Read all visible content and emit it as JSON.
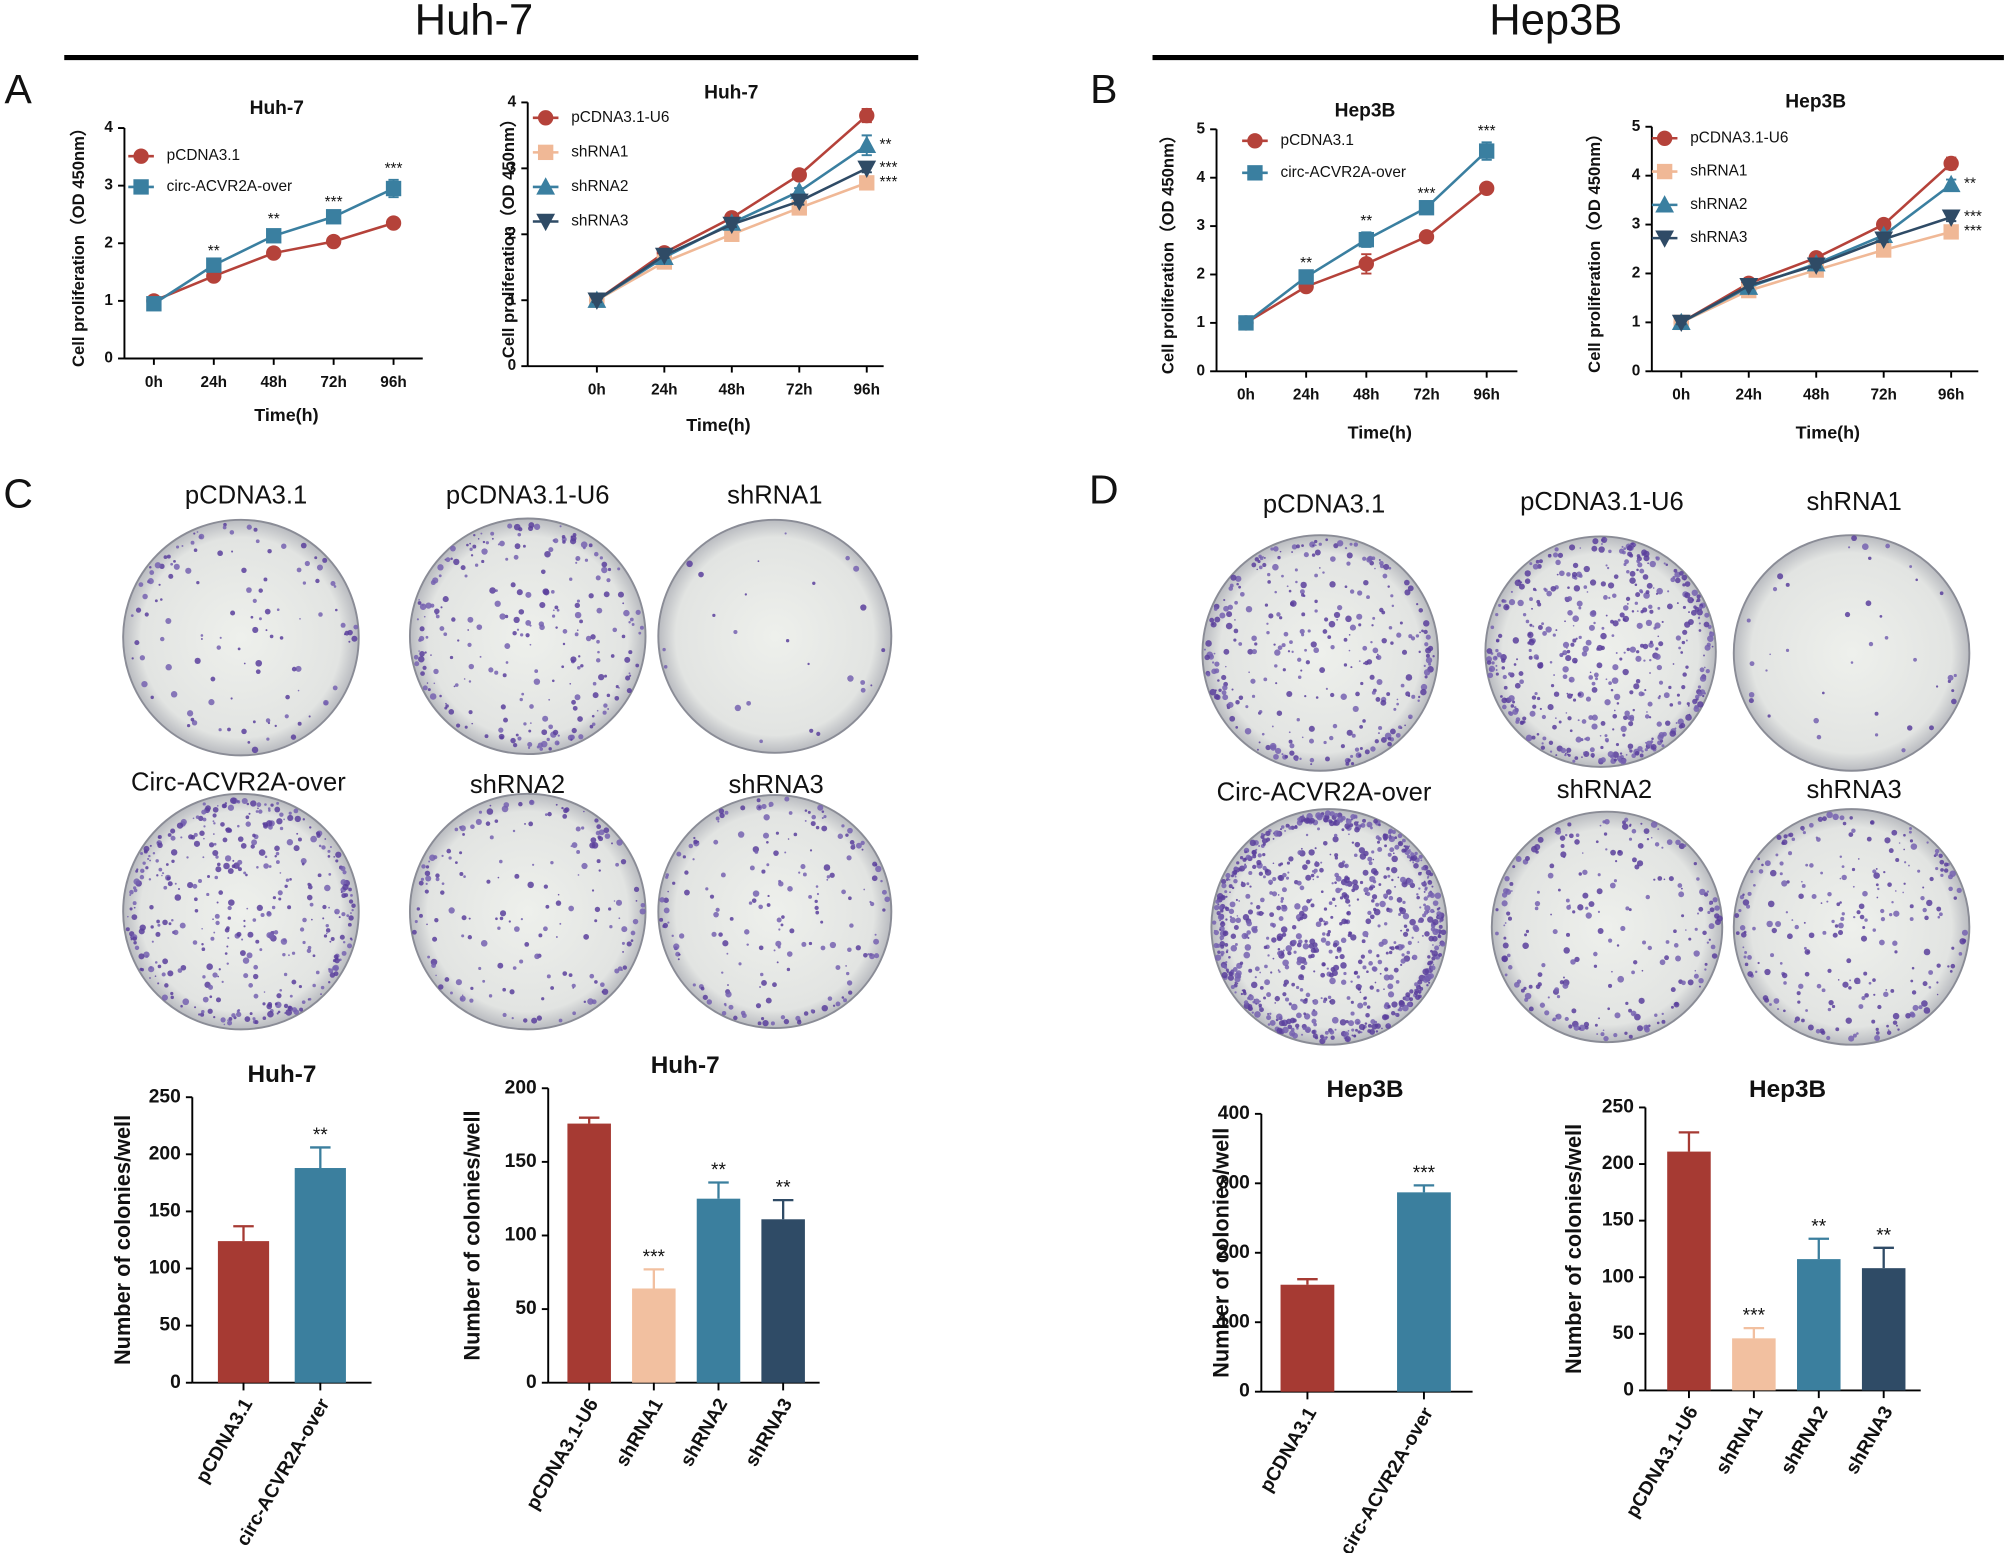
{
  "headers": [
    "Huh-7",
    "Hep3B"
  ],
  "panel_letters": [
    "A",
    "B",
    "C",
    "D"
  ],
  "plates": {
    "C": [
      "pCDNA3.1",
      "pCDNA3.1-U6",
      "shRNA1",
      "Circ-ACVR2A-over",
      "shRNA2",
      "shRNA3"
    ],
    "D": [
      "pCDNA3.1",
      "pCDNA3.1-U6",
      "shRNA1",
      "Circ-ACVR2A-over",
      "shRNA2",
      "shRNA3"
    ]
  },
  "chart_data": [
    {
      "type": "line",
      "title": "Huh-7",
      "xlabel": "Time(h)",
      "ylabel": "Cell proliferation（OD 450nm）",
      "categories": [
        "0h",
        "24h",
        "48h",
        "72h",
        "96h"
      ],
      "ylim": [
        0,
        4
      ],
      "yticks": [
        0,
        1,
        2,
        3,
        4
      ],
      "series": [
        {
          "name": "pCDNA3.1",
          "color": "#b5423a",
          "marker": "circle",
          "values": [
            1,
            1.43,
            1.83,
            2.03,
            2.35
          ],
          "errors": [
            0.03,
            0.04,
            0.05,
            0.04,
            0.06
          ],
          "annotations": [
            null,
            null,
            null,
            null,
            null
          ]
        },
        {
          "name": "circ-ACVR2A-over",
          "color": "#3a7fa0",
          "marker": "square",
          "values": [
            0.95,
            1.62,
            2.13,
            2.46,
            2.95
          ],
          "errors": [
            0.03,
            0.05,
            0.1,
            0.06,
            0.15
          ],
          "annotations": [
            null,
            "**",
            "**",
            "***",
            "***"
          ]
        }
      ]
    },
    {
      "type": "line",
      "title": "Huh-7",
      "xlabel": "Time(h)",
      "ylabel": "Cell proliferation（OD 450nm）",
      "categories": [
        "0h",
        "24h",
        "48h",
        "72h",
        "96h"
      ],
      "ylim": [
        0,
        4
      ],
      "yticks": [
        0,
        1,
        2,
        3,
        4
      ],
      "series": [
        {
          "name": "pCDNA3.1-U6",
          "color": "#b5423a",
          "marker": "circle",
          "values": [
            1,
            1.72,
            2.25,
            2.9,
            3.8
          ],
          "errors": [
            0.03,
            0.04,
            0.04,
            0.05,
            0.1
          ],
          "annotations": [
            null,
            null,
            null,
            null,
            null
          ]
        },
        {
          "name": "shRNA1",
          "color": "#f0b896",
          "marker": "square",
          "values": [
            1,
            1.58,
            2.0,
            2.4,
            2.78
          ],
          "errors": [
            0.03,
            0.04,
            0.04,
            0.05,
            0.08
          ],
          "annotations": [
            null,
            null,
            null,
            null,
            "***"
          ]
        },
        {
          "name": "shRNA2",
          "color": "#3a7fa0",
          "marker": "triangle-up",
          "values": [
            1,
            1.65,
            2.17,
            2.65,
            3.35
          ],
          "errors": [
            0.03,
            0.04,
            0.04,
            0.05,
            0.15
          ],
          "annotations": [
            null,
            null,
            null,
            null,
            "**"
          ]
        },
        {
          "name": "shRNA3",
          "color": "#2f4b66",
          "marker": "triangle-down",
          "values": [
            1,
            1.68,
            2.15,
            2.5,
            3.0
          ],
          "errors": [
            0.03,
            0.04,
            0.04,
            0.05,
            0.06
          ],
          "annotations": [
            null,
            null,
            null,
            null,
            "***"
          ]
        }
      ]
    },
    {
      "type": "line",
      "title": "Hep3B",
      "xlabel": "Time(h)",
      "ylabel": "Cell proliferation（OD 450nm）",
      "categories": [
        "0h",
        "24h",
        "48h",
        "72h",
        "96h"
      ],
      "ylim": [
        0,
        5
      ],
      "yticks": [
        0,
        1,
        2,
        3,
        4,
        5
      ],
      "series": [
        {
          "name": "pCDNA3.1",
          "color": "#b5423a",
          "marker": "circle",
          "values": [
            1,
            1.75,
            2.22,
            2.78,
            3.78
          ],
          "errors": [
            0.04,
            0.08,
            0.2,
            0.08,
            0.1
          ],
          "annotations": [
            null,
            null,
            null,
            null,
            null
          ]
        },
        {
          "name": "circ-ACVR2A-over",
          "color": "#3a7fa0",
          "marker": "square",
          "values": [
            1,
            1.95,
            2.72,
            3.38,
            4.55
          ],
          "errors": [
            0.04,
            0.06,
            0.15,
            0.06,
            0.18
          ],
          "annotations": [
            null,
            "**",
            "**",
            "***",
            "***"
          ]
        }
      ]
    },
    {
      "type": "line",
      "title": "Hep3B",
      "xlabel": "Time(h)",
      "ylabel": "Cell proliferation（OD 450nm）",
      "categories": [
        "0h",
        "24h",
        "48h",
        "72h",
        "96h"
      ],
      "ylim": [
        0,
        5
      ],
      "yticks": [
        0,
        1,
        2,
        3,
        4,
        5
      ],
      "series": [
        {
          "name": "pCDNA3.1-U6",
          "color": "#b5423a",
          "marker": "circle",
          "values": [
            1,
            1.8,
            2.32,
            3.0,
            4.25
          ],
          "errors": [
            0.04,
            0.05,
            0.06,
            0.08,
            0.12
          ],
          "annotations": [
            null,
            null,
            null,
            null,
            null
          ]
        },
        {
          "name": "shRNA1",
          "color": "#f0b896",
          "marker": "square",
          "values": [
            1,
            1.65,
            2.07,
            2.48,
            2.85
          ],
          "errors": [
            0.04,
            0.05,
            0.05,
            0.06,
            0.1
          ],
          "annotations": [
            null,
            null,
            null,
            null,
            "***"
          ]
        },
        {
          "name": "shRNA2",
          "color": "#3a7fa0",
          "marker": "triangle-up",
          "values": [
            1,
            1.72,
            2.2,
            2.78,
            3.82
          ],
          "errors": [
            0.04,
            0.05,
            0.05,
            0.06,
            0.1
          ],
          "annotations": [
            null,
            null,
            null,
            null,
            "**"
          ]
        },
        {
          "name": "shRNA3",
          "color": "#2f4b66",
          "marker": "triangle-down",
          "values": [
            1,
            1.75,
            2.17,
            2.7,
            3.15
          ],
          "errors": [
            0.04,
            0.05,
            0.05,
            0.06,
            0.08
          ],
          "annotations": [
            null,
            null,
            null,
            null,
            "***"
          ]
        }
      ]
    },
    {
      "type": "bar",
      "title": "Huh-7",
      "ylabel": "Number of colonies/well",
      "categories": [
        "pCDNA3.1",
        "circ-ACVR2A-over"
      ],
      "values": [
        124,
        188
      ],
      "errors": [
        13,
        18
      ],
      "annotations": [
        null,
        "**"
      ],
      "colors": [
        "#a63a33",
        "#3b7f9e"
      ],
      "ylim": [
        0,
        250
      ],
      "yticks": [
        0,
        50,
        100,
        150,
        200,
        250
      ]
    },
    {
      "type": "bar",
      "title": "Huh-7",
      "ylabel": "Number of colonies/well",
      "categories": [
        "pCDNA3.1-U6",
        "shRNA1",
        "shRNA2",
        "shRNA3"
      ],
      "values": [
        176,
        64,
        125,
        111
      ],
      "errors": [
        4,
        13,
        11,
        13
      ],
      "annotations": [
        null,
        "***",
        "**",
        "**"
      ],
      "colors": [
        "#a63a33",
        "#f2c0a0",
        "#3b7f9e",
        "#2f4b66"
      ],
      "ylim": [
        0,
        200
      ],
      "yticks": [
        0,
        50,
        100,
        150,
        200
      ]
    },
    {
      "type": "bar",
      "title": "Hep3B",
      "ylabel": "Number of colonies/well",
      "categories": [
        "pCDNA3.1",
        "circ-ACVR2A-over"
      ],
      "values": [
        154,
        287
      ],
      "errors": [
        8,
        10
      ],
      "annotations": [
        null,
        "***"
      ],
      "colors": [
        "#a63a33",
        "#3b7f9e"
      ],
      "ylim": [
        0,
        400
      ],
      "yticks": [
        0,
        100,
        200,
        300,
        400
      ]
    },
    {
      "type": "bar",
      "title": "Hep3B",
      "ylabel": "Number of colonies/well",
      "categories": [
        "pCDNA3.1-U6",
        "shRNA1",
        "shRNA2",
        "shRNA3"
      ],
      "values": [
        211,
        46,
        116,
        108
      ],
      "errors": [
        17,
        9,
        18,
        18
      ],
      "annotations": [
        null,
        "***",
        "**",
        "**"
      ],
      "colors": [
        "#a63a33",
        "#f2c0a0",
        "#3b7f9e",
        "#2f4b66"
      ],
      "ylim": [
        0,
        250
      ],
      "yticks": [
        0,
        50,
        100,
        150,
        200,
        250
      ]
    }
  ]
}
